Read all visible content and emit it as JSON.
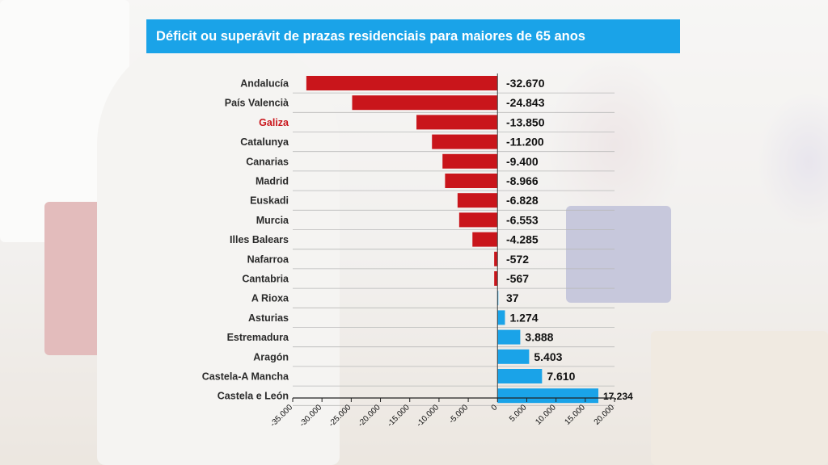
{
  "chart_data": {
    "type": "bar",
    "orientation": "horizontal",
    "title": "Déficit ou superávit de prazas residenciais para maiores de 65 anos",
    "categories": [
      "Andalucía",
      "País Valencià",
      "Galiza",
      "Catalunya",
      "Canarias",
      "Madrid",
      "Euskadi",
      "Murcia",
      "Illes Balears",
      "Nafarroa",
      "Cantabria",
      "A Rioxa",
      "Asturias",
      "Estremadura",
      "Aragón",
      "Castela-A Mancha",
      "Castela e León"
    ],
    "values": [
      -32670,
      -24843,
      -13850,
      -11200,
      -9400,
      -8966,
      -6828,
      -6553,
      -4285,
      -572,
      -567,
      37,
      1274,
      3888,
      5403,
      7610,
      17234
    ],
    "value_labels": [
      "-32.670",
      "-24.843",
      "-13.850",
      "-11.200",
      "-9.400",
      "-8.966",
      "-6.828",
      "-6.553",
      "-4.285",
      "-572",
      "-567",
      "37",
      "1.274",
      "3.888",
      "5.403",
      "7.610",
      "17.234"
    ],
    "highlight_category": "Galiza",
    "xlim": [
      -35000,
      20000
    ],
    "xticks": [
      -35000,
      -30000,
      -25000,
      -20000,
      -15000,
      -10000,
      -5000,
      0,
      5000,
      10000,
      15000,
      20000
    ],
    "xtick_labels": [
      "-35.000",
      "-30.000",
      "-25.000",
      "-20.000",
      "-15.000",
      "-10.000",
      "-5.000",
      "0",
      "5.000",
      "10.000",
      "15.000",
      "20.000"
    ],
    "grid": "horizontal lines",
    "colors": {
      "negative": "#c9151b",
      "positive": "#1aa3e8",
      "highlight_label": "#c9151b",
      "title_background": "#1aa3e8"
    }
  }
}
